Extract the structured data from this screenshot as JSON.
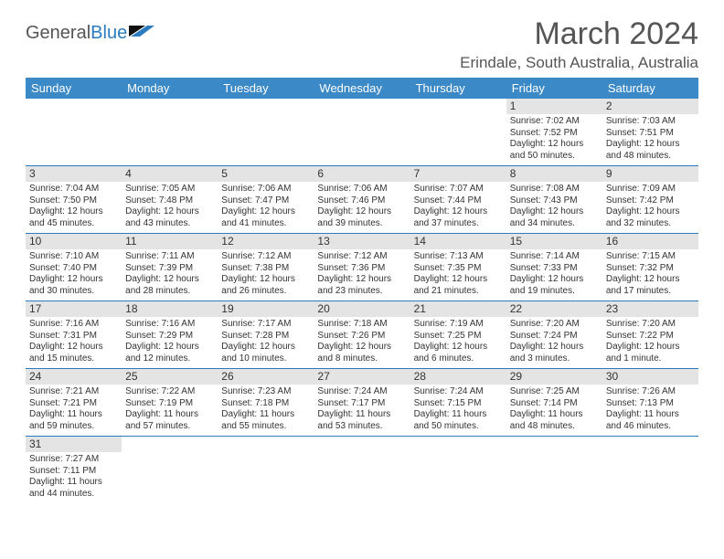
{
  "brand": {
    "text1": "General",
    "text2": "Blue",
    "color1": "#555555",
    "color2": "#2a7bbf"
  },
  "title": "March 2024",
  "location": "Erindale, South Australia, Australia",
  "header_bg": "#3b89c7",
  "header_fg": "#ffffff",
  "daynum_bg": "#e4e4e4",
  "rule_color": "#2a7bbf",
  "weekdays": [
    "Sunday",
    "Monday",
    "Tuesday",
    "Wednesday",
    "Thursday",
    "Friday",
    "Saturday"
  ],
  "weeks": [
    [
      {
        "n": "",
        "sr": "",
        "ss": "",
        "d1": "",
        "d2": ""
      },
      {
        "n": "",
        "sr": "",
        "ss": "",
        "d1": "",
        "d2": ""
      },
      {
        "n": "",
        "sr": "",
        "ss": "",
        "d1": "",
        "d2": ""
      },
      {
        "n": "",
        "sr": "",
        "ss": "",
        "d1": "",
        "d2": ""
      },
      {
        "n": "",
        "sr": "",
        "ss": "",
        "d1": "",
        "d2": ""
      },
      {
        "n": "1",
        "sr": "Sunrise: 7:02 AM",
        "ss": "Sunset: 7:52 PM",
        "d1": "Daylight: 12 hours",
        "d2": "and 50 minutes."
      },
      {
        "n": "2",
        "sr": "Sunrise: 7:03 AM",
        "ss": "Sunset: 7:51 PM",
        "d1": "Daylight: 12 hours",
        "d2": "and 48 minutes."
      }
    ],
    [
      {
        "n": "3",
        "sr": "Sunrise: 7:04 AM",
        "ss": "Sunset: 7:50 PM",
        "d1": "Daylight: 12 hours",
        "d2": "and 45 minutes."
      },
      {
        "n": "4",
        "sr": "Sunrise: 7:05 AM",
        "ss": "Sunset: 7:48 PM",
        "d1": "Daylight: 12 hours",
        "d2": "and 43 minutes."
      },
      {
        "n": "5",
        "sr": "Sunrise: 7:06 AM",
        "ss": "Sunset: 7:47 PM",
        "d1": "Daylight: 12 hours",
        "d2": "and 41 minutes."
      },
      {
        "n": "6",
        "sr": "Sunrise: 7:06 AM",
        "ss": "Sunset: 7:46 PM",
        "d1": "Daylight: 12 hours",
        "d2": "and 39 minutes."
      },
      {
        "n": "7",
        "sr": "Sunrise: 7:07 AM",
        "ss": "Sunset: 7:44 PM",
        "d1": "Daylight: 12 hours",
        "d2": "and 37 minutes."
      },
      {
        "n": "8",
        "sr": "Sunrise: 7:08 AM",
        "ss": "Sunset: 7:43 PM",
        "d1": "Daylight: 12 hours",
        "d2": "and 34 minutes."
      },
      {
        "n": "9",
        "sr": "Sunrise: 7:09 AM",
        "ss": "Sunset: 7:42 PM",
        "d1": "Daylight: 12 hours",
        "d2": "and 32 minutes."
      }
    ],
    [
      {
        "n": "10",
        "sr": "Sunrise: 7:10 AM",
        "ss": "Sunset: 7:40 PM",
        "d1": "Daylight: 12 hours",
        "d2": "and 30 minutes."
      },
      {
        "n": "11",
        "sr": "Sunrise: 7:11 AM",
        "ss": "Sunset: 7:39 PM",
        "d1": "Daylight: 12 hours",
        "d2": "and 28 minutes."
      },
      {
        "n": "12",
        "sr": "Sunrise: 7:12 AM",
        "ss": "Sunset: 7:38 PM",
        "d1": "Daylight: 12 hours",
        "d2": "and 26 minutes."
      },
      {
        "n": "13",
        "sr": "Sunrise: 7:12 AM",
        "ss": "Sunset: 7:36 PM",
        "d1": "Daylight: 12 hours",
        "d2": "and 23 minutes."
      },
      {
        "n": "14",
        "sr": "Sunrise: 7:13 AM",
        "ss": "Sunset: 7:35 PM",
        "d1": "Daylight: 12 hours",
        "d2": "and 21 minutes."
      },
      {
        "n": "15",
        "sr": "Sunrise: 7:14 AM",
        "ss": "Sunset: 7:33 PM",
        "d1": "Daylight: 12 hours",
        "d2": "and 19 minutes."
      },
      {
        "n": "16",
        "sr": "Sunrise: 7:15 AM",
        "ss": "Sunset: 7:32 PM",
        "d1": "Daylight: 12 hours",
        "d2": "and 17 minutes."
      }
    ],
    [
      {
        "n": "17",
        "sr": "Sunrise: 7:16 AM",
        "ss": "Sunset: 7:31 PM",
        "d1": "Daylight: 12 hours",
        "d2": "and 15 minutes."
      },
      {
        "n": "18",
        "sr": "Sunrise: 7:16 AM",
        "ss": "Sunset: 7:29 PM",
        "d1": "Daylight: 12 hours",
        "d2": "and 12 minutes."
      },
      {
        "n": "19",
        "sr": "Sunrise: 7:17 AM",
        "ss": "Sunset: 7:28 PM",
        "d1": "Daylight: 12 hours",
        "d2": "and 10 minutes."
      },
      {
        "n": "20",
        "sr": "Sunrise: 7:18 AM",
        "ss": "Sunset: 7:26 PM",
        "d1": "Daylight: 12 hours",
        "d2": "and 8 minutes."
      },
      {
        "n": "21",
        "sr": "Sunrise: 7:19 AM",
        "ss": "Sunset: 7:25 PM",
        "d1": "Daylight: 12 hours",
        "d2": "and 6 minutes."
      },
      {
        "n": "22",
        "sr": "Sunrise: 7:20 AM",
        "ss": "Sunset: 7:24 PM",
        "d1": "Daylight: 12 hours",
        "d2": "and 3 minutes."
      },
      {
        "n": "23",
        "sr": "Sunrise: 7:20 AM",
        "ss": "Sunset: 7:22 PM",
        "d1": "Daylight: 12 hours",
        "d2": "and 1 minute."
      }
    ],
    [
      {
        "n": "24",
        "sr": "Sunrise: 7:21 AM",
        "ss": "Sunset: 7:21 PM",
        "d1": "Daylight: 11 hours",
        "d2": "and 59 minutes."
      },
      {
        "n": "25",
        "sr": "Sunrise: 7:22 AM",
        "ss": "Sunset: 7:19 PM",
        "d1": "Daylight: 11 hours",
        "d2": "and 57 minutes."
      },
      {
        "n": "26",
        "sr": "Sunrise: 7:23 AM",
        "ss": "Sunset: 7:18 PM",
        "d1": "Daylight: 11 hours",
        "d2": "and 55 minutes."
      },
      {
        "n": "27",
        "sr": "Sunrise: 7:24 AM",
        "ss": "Sunset: 7:17 PM",
        "d1": "Daylight: 11 hours",
        "d2": "and 53 minutes."
      },
      {
        "n": "28",
        "sr": "Sunrise: 7:24 AM",
        "ss": "Sunset: 7:15 PM",
        "d1": "Daylight: 11 hours",
        "d2": "and 50 minutes."
      },
      {
        "n": "29",
        "sr": "Sunrise: 7:25 AM",
        "ss": "Sunset: 7:14 PM",
        "d1": "Daylight: 11 hours",
        "d2": "and 48 minutes."
      },
      {
        "n": "30",
        "sr": "Sunrise: 7:26 AM",
        "ss": "Sunset: 7:13 PM",
        "d1": "Daylight: 11 hours",
        "d2": "and 46 minutes."
      }
    ],
    [
      {
        "n": "31",
        "sr": "Sunrise: 7:27 AM",
        "ss": "Sunset: 7:11 PM",
        "d1": "Daylight: 11 hours",
        "d2": "and 44 minutes."
      },
      {
        "n": "",
        "sr": "",
        "ss": "",
        "d1": "",
        "d2": ""
      },
      {
        "n": "",
        "sr": "",
        "ss": "",
        "d1": "",
        "d2": ""
      },
      {
        "n": "",
        "sr": "",
        "ss": "",
        "d1": "",
        "d2": ""
      },
      {
        "n": "",
        "sr": "",
        "ss": "",
        "d1": "",
        "d2": ""
      },
      {
        "n": "",
        "sr": "",
        "ss": "",
        "d1": "",
        "d2": ""
      },
      {
        "n": "",
        "sr": "",
        "ss": "",
        "d1": "",
        "d2": ""
      }
    ]
  ]
}
